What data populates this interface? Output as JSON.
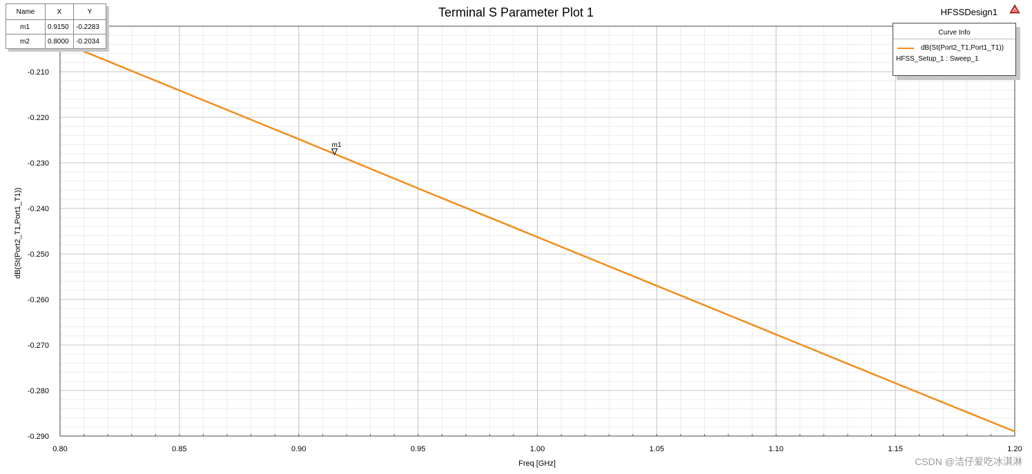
{
  "title": "Terminal S Parameter Plot 1",
  "design_name": "HFSSDesign1",
  "logo_icon": "ansys-logo-icon",
  "watermark": "CSDN @洁仔爱吃冰淇淋",
  "marker_table": {
    "headers": [
      "Name",
      "X",
      "Y"
    ],
    "rows": [
      {
        "name": "m1",
        "x": "0.9150",
        "y": "-0.2283"
      },
      {
        "name": "m2",
        "x": "0.8000",
        "y": "-0.2034"
      }
    ]
  },
  "legend": {
    "title": "Curve Info",
    "curve": "dB(St(Port2_T1,Port1_T1))",
    "setup": "HFSS_Setup_1 : Sweep_1",
    "color": "#f28c1a"
  },
  "chart_data": {
    "type": "line",
    "title": "Terminal S Parameter Plot 1",
    "xlabel": "Freq [GHz]",
    "ylabel": "dB(St(Port2_T1,Port1_T1))",
    "xlim": [
      0.8,
      1.2
    ],
    "ylim": [
      -0.29,
      -0.2
    ],
    "xticks": [
      0.8,
      0.85,
      0.9,
      0.95,
      1.0,
      1.05,
      1.1,
      1.15,
      1.2
    ],
    "xtick_labels": [
      "0.80",
      "0.85",
      "0.90",
      "0.95",
      "1.00",
      "1.05",
      "1.10",
      "1.15",
      "1.20"
    ],
    "yticks": [
      -0.21,
      -0.22,
      -0.23,
      -0.24,
      -0.25,
      -0.26,
      -0.27,
      -0.28,
      -0.29
    ],
    "ytick_labels": [
      "-0.210",
      "-0.220",
      "-0.230",
      "-0.240",
      "-0.250",
      "-0.260",
      "-0.270",
      "-0.280",
      "-0.290"
    ],
    "grid": true,
    "legend_position": "top-right",
    "series": [
      {
        "name": "dB(St(Port2_T1,Port1_T1))",
        "color": "#f28c1a",
        "x": [
          0.8,
          0.85,
          0.9,
          0.95,
          1.0,
          1.05,
          1.1,
          1.15,
          1.2
        ],
        "y": [
          -0.2034,
          -0.2141,
          -0.2248,
          -0.2356,
          -0.2463,
          -0.257,
          -0.2677,
          -0.2784,
          -0.289
        ]
      }
    ],
    "markers": [
      {
        "name": "m1",
        "x": 0.915,
        "y": -0.2283,
        "show_label": true
      },
      {
        "name": "m2",
        "x": 0.8,
        "y": -0.2034,
        "show_label": false
      }
    ]
  }
}
